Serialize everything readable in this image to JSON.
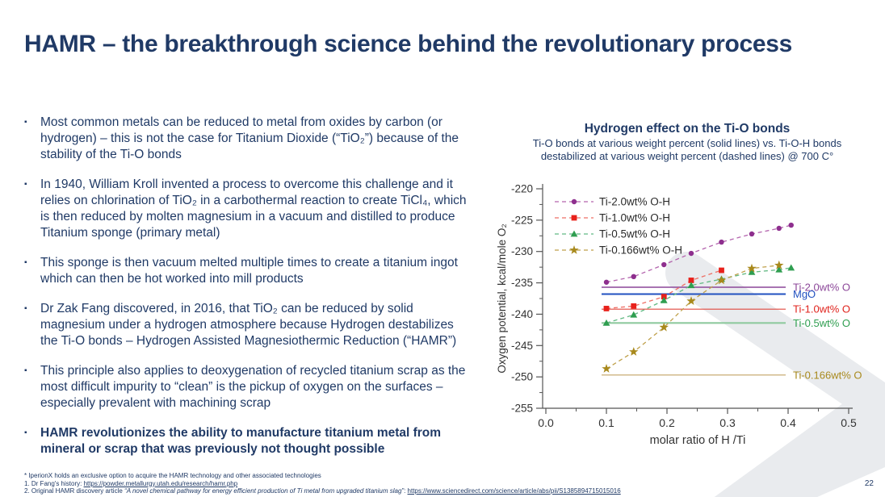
{
  "title": "HAMR – the breakthrough science behind the revolutionary process",
  "page_number": "22",
  "colors": {
    "navy": "#203a66",
    "watermark": "#e9ebee",
    "axis": "#555555",
    "tick_text": "#333333"
  },
  "bullets": [
    {
      "text": "Most common metals can be reduced to metal from oxides by carbon (or hydrogen) – this is not the case for Titanium Dioxide (“TiO₂”) because of the stability of the Ti-O bonds",
      "bold": false
    },
    {
      "text": "In 1940, William Kroll invented a process to overcome this challenge and it relies on chlorination of TiO₂ in a carbothermal reaction to create TiCl₄, which is then reduced by molten magnesium in a vacuum and distilled to produce Titanium sponge (primary metal)",
      "bold": false
    },
    {
      "text": "This sponge is then vacuum melted multiple times to create a titanium ingot which can then be hot worked into mill products",
      "bold": false
    },
    {
      "text": "Dr Zak Fang discovered, in 2016, that TiO₂ can be reduced by solid magnesium under a hydrogen atmosphere because Hydrogen destabilizes the Ti-O bonds – Hydrogen Assisted Magnesiothermic Reduction (“HAMR”)",
      "bold": false
    },
    {
      "text": "This principle also applies to deoxygenation of recycled titanium scrap as the most difficult impurity to “clean” is the pickup of oxygen on the surfaces – especially prevalent with machining scrap",
      "bold": false
    },
    {
      "text": "HAMR revolutionizes the ability to manufacture titanium metal from mineral or scrap that was previously not thought possible",
      "bold": true
    }
  ],
  "footnotes": [
    {
      "parts": [
        {
          "t": "* IperionX holds an exclusive option to acquire the HAMR technology and other associated technologies"
        }
      ]
    },
    {
      "parts": [
        {
          "t": "1. Dr Fang's history: "
        },
        {
          "t": "https://powder.metallurgy.utah.edu/research/hamr.php",
          "link": true
        }
      ]
    },
    {
      "parts": [
        {
          "t": "2. Original HAMR discovery article "
        },
        {
          "t": "“A novel chemical pathway for energy efficient production of Ti metal from upgraded titanium slag”",
          "italic": true
        },
        {
          "t": ": "
        },
        {
          "t": "https://www.sciencedirect.com/science/article/abs/pii/S1385894715015016",
          "link": true
        }
      ]
    }
  ],
  "chart_data": {
    "type": "line",
    "title": "Hydrogen effect on the Ti-O bonds",
    "subtitle_lines": [
      "Ti-O bonds at various weight percent (solid lines) vs. Ti-O-H bonds",
      "destabilized at various weight percent (dashed lines) @ 700 C°"
    ],
    "xlabel": "molar ratio of H /Ti",
    "ylabel": "Oxygen potential, kcal/mole O₂",
    "xlim": [
      0.0,
      0.5
    ],
    "ylim": [
      -255,
      -220
    ],
    "x_ticks": [
      0.0,
      0.1,
      0.2,
      0.3,
      0.4,
      0.5
    ],
    "y_ticks": [
      -220,
      -225,
      -230,
      -235,
      -240,
      -245,
      -250,
      -255
    ],
    "grid": false,
    "legend_position": "top-left-inside",
    "series": [
      {
        "name": "Ti-2.0wt% O-H",
        "style": "dashed",
        "marker": "circle",
        "marker_color": "#8e2f8e",
        "line_color": "#b465ae",
        "x": [
          0.1,
          0.145,
          0.195,
          0.24,
          0.29,
          0.34,
          0.385,
          0.405
        ],
        "y": [
          -234.9,
          -234.0,
          -232.1,
          -230.3,
          -228.5,
          -227.2,
          -226.3,
          -225.8
        ]
      },
      {
        "name": "Ti-1.0wt% O-H",
        "style": "dashed",
        "marker": "square",
        "marker_color": "#e8211b",
        "line_color": "#ee6f66",
        "x": [
          0.1,
          0.145,
          0.195,
          0.24,
          0.29
        ],
        "y": [
          -239.1,
          -238.7,
          -237.2,
          -234.6,
          -233.0
        ]
      },
      {
        "name": "Ti-0.5wt% O-H",
        "style": "dashed",
        "marker": "triangle",
        "marker_color": "#2f9e50",
        "line_color": "#62b983",
        "x": [
          0.1,
          0.145,
          0.195,
          0.24,
          0.29,
          0.34,
          0.385,
          0.405
        ],
        "y": [
          -241.4,
          -240.1,
          -237.8,
          -235.4,
          -234.4,
          -233.3,
          -232.9,
          -232.6
        ]
      },
      {
        "name": "Ti-0.166wt% O-H",
        "style": "dashed",
        "marker": "star",
        "marker_color": "#a8891c",
        "line_color": "#bfa04a",
        "x": [
          0.1,
          0.145,
          0.195,
          0.24,
          0.29,
          0.34,
          0.385
        ],
        "y": [
          -248.7,
          -246.0,
          -242.1,
          -237.9,
          -234.6,
          -232.7,
          -232.2
        ]
      }
    ],
    "reference_lines": [
      {
        "label": "Ti-2.0wt% O",
        "value": -235.7,
        "color": "#8c4799",
        "label_color": "#8c4799",
        "line_width": 1.4
      },
      {
        "label": "MgO",
        "value": -236.8,
        "color": "#2150c0",
        "label_color": "#2150c0",
        "line_width": 2.0
      },
      {
        "label": "Ti-1.0wt% O",
        "value": -239.2,
        "color": "#e0483e",
        "label_color": "#e0231d",
        "line_width": 1.1
      },
      {
        "label": "Ti-0.5wt% O",
        "value": -241.4,
        "color": "#8fca9f",
        "label_color": "#2f9e50",
        "line_width": 2.2
      },
      {
        "label": "Ti-0.166wt% O",
        "value": -249.7,
        "color": "#c3a365",
        "label_color": "#a8891c",
        "line_width": 1.2
      }
    ],
    "reference_line_x_range": [
      0.092,
      0.396
    ]
  }
}
